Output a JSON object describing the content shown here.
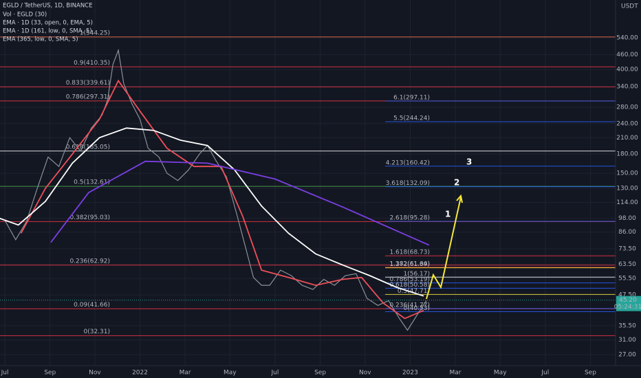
{
  "chart_data": {
    "type": "line",
    "title": "EGLD / TetherUS, 1D, BINANCE",
    "indicators": [
      "Vol · EGLD (30)"
    ],
    "axis_unit": "USDT",
    "log_scale": true,
    "grid": true,
    "xlim": [
      2021.482,
      2023.76
    ],
    "xticks": [
      {
        "value": 2021.5,
        "label": "Jul"
      },
      {
        "value": 2021.667,
        "label": "Sep"
      },
      {
        "value": 2021.833,
        "label": "Nov"
      },
      {
        "value": 2022.0,
        "label": "2022"
      },
      {
        "value": 2022.167,
        "label": "Mar"
      },
      {
        "value": 2022.333,
        "label": "May"
      },
      {
        "value": 2022.5,
        "label": "Jul"
      },
      {
        "value": 2022.667,
        "label": "Sep"
      },
      {
        "value": 2022.833,
        "label": "Nov"
      },
      {
        "value": 2023.0,
        "label": "2023"
      },
      {
        "value": 2023.167,
        "label": "Mar"
      },
      {
        "value": 2023.333,
        "label": "May"
      },
      {
        "value": 2023.5,
        "label": "Jul"
      },
      {
        "value": 2023.667,
        "label": "Sep"
      }
    ],
    "ylim": [
      23.1,
      772
    ],
    "yticks": [
      {
        "value": 540,
        "label": "540.00"
      },
      {
        "value": 460,
        "label": "460.00"
      },
      {
        "value": 400,
        "label": "400.00"
      },
      {
        "value": 340,
        "label": "340.00"
      },
      {
        "value": 280,
        "label": "280.00"
      },
      {
        "value": 240,
        "label": "240.00"
      },
      {
        "value": 210,
        "label": "210.00"
      },
      {
        "value": 180,
        "label": "180.00"
      },
      {
        "value": 150,
        "label": "150.00"
      },
      {
        "value": 130,
        "label": "130.00"
      },
      {
        "value": 114,
        "label": "114.00"
      },
      {
        "value": 98,
        "label": "98.00"
      },
      {
        "value": 86,
        "label": "86.00"
      },
      {
        "value": 73.5,
        "label": "73.50"
      },
      {
        "value": 63.5,
        "label": "63.50"
      },
      {
        "value": 55.5,
        "label": "55.50"
      },
      {
        "value": 47.5,
        "label": "47.50"
      },
      {
        "value": 35.5,
        "label": "35.50"
      },
      {
        "value": 31,
        "label": "31.00"
      },
      {
        "value": 27,
        "label": "27.00"
      }
    ],
    "price": {
      "color": "#8a9098",
      "x": [
        2021.5,
        2021.54,
        2021.58,
        2021.62,
        2021.66,
        2021.7,
        2021.74,
        2021.78,
        2021.82,
        2021.86,
        2021.88,
        2021.9,
        2021.92,
        2021.94,
        2021.97,
        2022.0,
        2022.03,
        2022.07,
        2022.1,
        2022.14,
        2022.18,
        2022.22,
        2022.25,
        2022.28,
        2022.32,
        2022.36,
        2022.39,
        2022.42,
        2022.45,
        2022.48,
        2022.52,
        2022.56,
        2022.6,
        2022.64,
        2022.68,
        2022.72,
        2022.76,
        2022.8,
        2022.84,
        2022.88,
        2022.92,
        2022.96,
        2022.99,
        2023.03,
        2023.06
      ],
      "values": [
        96,
        80,
        95,
        130,
        175,
        160,
        210,
        185,
        230,
        260,
        300,
        420,
        480,
        350,
        290,
        250,
        190,
        175,
        150,
        140,
        155,
        180,
        195,
        170,
        145,
        100,
        75,
        56,
        52,
        52,
        60,
        57,
        52,
        50,
        55,
        52,
        57,
        58,
        46,
        43,
        45,
        38,
        34,
        40,
        45
      ]
    },
    "series": [
      {
        "name": "EMA · 1D (33, open, 0, EMA, 5)",
        "color": "#f0505a",
        "x": [
          2021.56,
          2021.65,
          2021.75,
          2021.85,
          2021.92,
          2022.0,
          2022.1,
          2022.2,
          2022.3,
          2022.38,
          2022.45,
          2022.55,
          2022.65,
          2022.75,
          2022.82,
          2022.9,
          2022.98,
          2023.05
        ],
        "values": [
          85,
          130,
          180,
          250,
          360,
          270,
          190,
          160,
          160,
          100,
          60,
          56,
          52,
          55,
          56,
          44,
          38,
          41
        ]
      },
      {
        "name": "EMA · 1D (161, low, 0, SMA, 5)",
        "color": "#ffffff",
        "x": [
          2021.48,
          2021.55,
          2021.65,
          2021.75,
          2021.85,
          2021.95,
          2022.05,
          2022.15,
          2022.25,
          2022.35,
          2022.45,
          2022.55,
          2022.65,
          2022.75,
          2022.85,
          2022.95,
          2023.05
        ],
        "values": [
          98,
          92,
          115,
          165,
          210,
          230,
          225,
          205,
          195,
          155,
          110,
          85,
          70,
          63,
          57,
          51,
          47
        ]
      },
      {
        "name": "EMA (365, low, 0, SMA, 5)",
        "color": "#7b3fe4",
        "x": [
          2021.67,
          2021.81,
          2022.02,
          2022.25,
          2022.5,
          2022.75,
          2023.07
        ],
        "values": [
          78,
          125,
          168,
          165,
          142,
          109,
          76
        ]
      }
    ],
    "fib_left": [
      {
        "label": "1(544.25)",
        "value": 544.25,
        "color": "#f5704a"
      },
      {
        "label": "0.9(410.35)",
        "value": 410.35,
        "color": "#f23645"
      },
      {
        "label": "0.833(339.61)",
        "value": 339.61,
        "color": "#f23645"
      },
      {
        "label": "0.786(297.31)",
        "value": 297.31,
        "color": "#f23645"
      },
      {
        "label": "0.618(185.05)",
        "value": 185.05,
        "color": "#ffffff"
      },
      {
        "label": "0.5(132.61)",
        "value": 132.61,
        "color": "#4caf50"
      },
      {
        "label": "0.382(95.03)",
        "value": 95.03,
        "color": "#f23645"
      },
      {
        "label": "0.236(62.92)",
        "value": 62.92,
        "color": "#f23645"
      },
      {
        "label": "0.09(41.66)",
        "value": 41.66,
        "color": "#f23645"
      },
      {
        "label": "0(32.31)",
        "value": 32.31,
        "color": "#f23645"
      }
    ],
    "fib_right": [
      {
        "label": "6.1(297.11)",
        "value": 297.11,
        "color": "#2962ff"
      },
      {
        "label": "5.5(244.24)",
        "value": 244.24,
        "color": "#2962ff"
      },
      {
        "label": "4.213(160.42)",
        "value": 160.42,
        "color": "#2962ff"
      },
      {
        "label": "3.618(132.09)",
        "value": 132.09,
        "color": "#2962ff"
      },
      {
        "label": "2.618(95.28)",
        "value": 95.28,
        "color": "#2962ff"
      },
      {
        "label": "1.618(68.73)",
        "value": 68.73,
        "color": "#f23645"
      },
      {
        "label": "1.382(61.64)",
        "value": 61.64,
        "color": "#f23645"
      },
      {
        "label": "1.272(61.39)",
        "value": 61.39,
        "color": "#f5e83a"
      },
      {
        "label": "1(56.17)",
        "value": 56.17,
        "color": "#ffffff"
      },
      {
        "label": "0.786(53.19)",
        "value": 53.19,
        "color": "#2962ff"
      },
      {
        "label": "0.618(50.58)",
        "value": 50.58,
        "color": "#2962ff"
      },
      {
        "label": "0.5(47.71)",
        "value": 47.71,
        "color": "#f5e83a"
      },
      {
        "label": "0.236(41.77)",
        "value": 41.77,
        "color": "#2962ff"
      },
      {
        "label": "0(40.53)",
        "value": 40.53,
        "color": "#2962ff"
      }
    ],
    "current_price": {
      "value": 45.2,
      "label": "45.20",
      "countdown": "05:24:31",
      "color": "#26a69a"
    },
    "annotations": [
      "1",
      "2",
      "3"
    ]
  }
}
